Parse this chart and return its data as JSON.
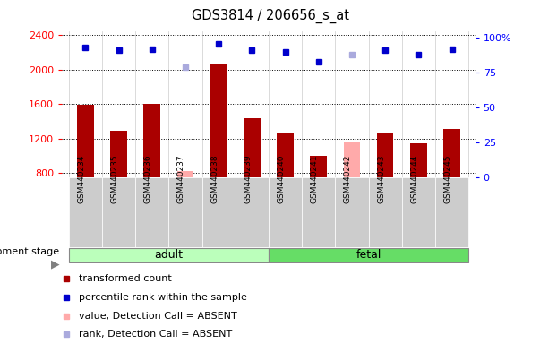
{
  "title": "GDS3814 / 206656_s_at",
  "samples": [
    "GSM440234",
    "GSM440235",
    "GSM440236",
    "GSM440237",
    "GSM440238",
    "GSM440239",
    "GSM440240",
    "GSM440241",
    "GSM440242",
    "GSM440243",
    "GSM440244",
    "GSM440245"
  ],
  "bar_values": [
    1590,
    1290,
    1600,
    null,
    2060,
    1430,
    1270,
    1000,
    null,
    1270,
    1140,
    1310
  ],
  "bar_absent_values": [
    null,
    null,
    null,
    820,
    null,
    null,
    null,
    null,
    1155,
    null,
    null,
    null
  ],
  "rank_values": [
    93,
    91,
    92,
    null,
    96,
    91,
    90,
    83,
    null,
    91,
    88,
    92
  ],
  "rank_absent_values": [
    null,
    null,
    null,
    79,
    null,
    null,
    null,
    null,
    88,
    null,
    null,
    null
  ],
  "bar_color": "#aa0000",
  "bar_absent_color": "#ffaaaa",
  "rank_color": "#0000cc",
  "rank_absent_color": "#aaaadd",
  "adult_color": "#bbffbb",
  "fetal_color": "#66dd66",
  "adult_samples": 6,
  "fetal_samples": 6,
  "ylim_left": [
    750,
    2450
  ],
  "ylim_right": [
    0,
    105
  ],
  "yticks_left": [
    800,
    1200,
    1600,
    2000,
    2400
  ],
  "yticks_right": [
    0,
    25,
    50,
    75,
    100
  ],
  "ytick_labels_right": [
    "0",
    "25",
    "50",
    "75",
    "100%"
  ],
  "legend_items": [
    {
      "label": "transformed count",
      "color": "#aa0000"
    },
    {
      "label": "percentile rank within the sample",
      "color": "#0000cc"
    },
    {
      "label": "value, Detection Call = ABSENT",
      "color": "#ffaaaa"
    },
    {
      "label": "rank, Detection Call = ABSENT",
      "color": "#aaaadd"
    }
  ],
  "dev_stage_label": "development stage",
  "bar_width": 0.5,
  "col_bg_color": "#cccccc",
  "plot_bg_color": "#ffffff"
}
